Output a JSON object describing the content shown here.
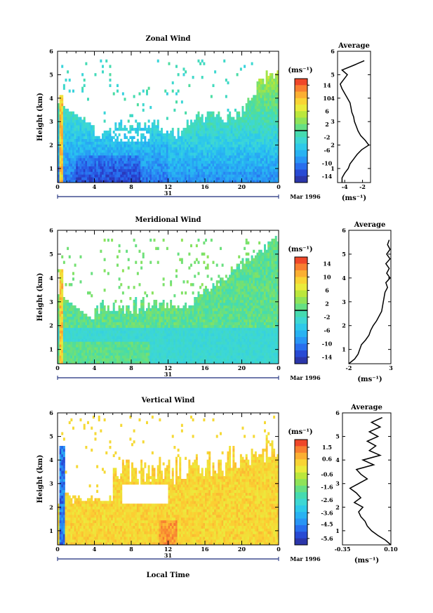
{
  "chart_data": [
    {
      "type": "heatmap",
      "key": "zonal",
      "title": "Zonal Wind",
      "ylabel": "Height (km)",
      "xticklabels": [
        "0",
        "4",
        "8",
        "12",
        "16",
        "20",
        "0"
      ],
      "xlim": [
        0,
        24
      ],
      "ylim": [
        0.4,
        6
      ],
      "yticks": [
        1,
        2,
        3,
        4,
        5,
        6
      ],
      "date_day": "31",
      "date_label": "Mar 1996",
      "colorbar": {
        "unit_label": "(ms⁻¹)",
        "range": [
          -16,
          16
        ],
        "tick_labels": [
          "14",
          "10",
          "6",
          "2",
          "-2",
          "-6",
          "-10",
          "-14"
        ],
        "tick_values": [
          14,
          10,
          6,
          2,
          -2,
          -6,
          -10,
          -14
        ],
        "zero_line": 0
      },
      "average_profile": {
        "title": "Average",
        "xlabel": "(ms⁻¹)",
        "xticklabels": [
          "-4",
          "-2"
        ],
        "xticks": [
          -4,
          -2
        ],
        "xlim": [
          -4.8,
          -1.1
        ],
        "heights": [
          0.4,
          0.6,
          0.8,
          1.0,
          1.2,
          1.4,
          1.6,
          1.8,
          2.0,
          2.2,
          2.4,
          2.6,
          2.8,
          3.0,
          3.2,
          3.4,
          3.6,
          3.8,
          4.0,
          4.2,
          4.4,
          4.6,
          4.8,
          5.0,
          5.2,
          5.4,
          5.6
        ],
        "values": [
          -4.3,
          -4.3,
          -4.0,
          -3.6,
          -3.4,
          -3.0,
          -2.6,
          -2.1,
          -1.3,
          -1.7,
          -2.2,
          -2.5,
          -2.7,
          -2.9,
          -3.0,
          -3.2,
          -3.3,
          -3.4,
          -3.7,
          -4.0,
          -4.3,
          -4.5,
          -4.1,
          -3.7,
          -4.3,
          -3.0,
          -1.8
        ]
      }
    },
    {
      "type": "heatmap",
      "key": "meridional",
      "title": "Meridional Wind",
      "ylabel": "Height (km)",
      "xticklabels": [
        "0",
        "4",
        "8",
        "12",
        "16",
        "20",
        "0"
      ],
      "xlim": [
        0,
        24
      ],
      "ylim": [
        0.4,
        6
      ],
      "yticks": [
        1,
        2,
        3,
        4,
        5,
        6
      ],
      "date_day": "31",
      "date_label": "Mar 1996",
      "colorbar": {
        "unit_label": "(ms⁻¹)",
        "range": [
          -16,
          16
        ],
        "tick_labels": [
          "14",
          "10",
          "6",
          "2",
          "-2",
          "-6",
          "-10",
          "-14"
        ],
        "tick_values": [
          14,
          10,
          6,
          2,
          -2,
          -6,
          -10,
          -14
        ],
        "zero_line": 0
      },
      "average_profile": {
        "title": "Average",
        "xlabel": "(ms⁻¹)",
        "xticklabels": [
          "-2",
          "3"
        ],
        "xticks": [
          -2,
          3
        ],
        "xlim": [
          -2,
          3
        ],
        "heights": [
          0.4,
          0.6,
          0.8,
          1.0,
          1.2,
          1.4,
          1.6,
          1.8,
          2.0,
          2.2,
          2.4,
          2.6,
          2.8,
          3.0,
          3.2,
          3.4,
          3.6,
          3.8,
          4.0,
          4.2,
          4.4,
          4.6,
          4.8,
          5.0,
          5.2,
          5.4,
          5.6
        ],
        "values": [
          -2.0,
          -1.3,
          -0.9,
          -0.7,
          -0.5,
          0.0,
          0.4,
          0.6,
          0.9,
          1.3,
          1.6,
          1.9,
          2.0,
          2.1,
          2.2,
          2.3,
          2.6,
          2.4,
          2.9,
          2.5,
          2.8,
          2.4,
          2.9,
          2.5,
          2.9,
          2.6,
          2.8
        ]
      }
    },
    {
      "type": "heatmap",
      "key": "vertical",
      "title": "Vertical Wind",
      "ylabel": "Height (km)",
      "xlabel": "Local Time",
      "xticklabels": [
        "0",
        "4",
        "8",
        "12",
        "16",
        "20",
        "0"
      ],
      "xlim": [
        0,
        24
      ],
      "ylim": [
        0.4,
        6
      ],
      "yticks": [
        1,
        2,
        3,
        4,
        5,
        6
      ],
      "date_day": "31",
      "date_label": "Mar 1996",
      "colorbar": {
        "unit_label": "(ms⁻¹)",
        "range": [
          -6.1,
          2.1
        ],
        "tick_labels": [
          "1.5",
          "0.6",
          "-0.6",
          "-1.6",
          "-2.6",
          "-3.6",
          "-4.5",
          "-5.6"
        ],
        "tick_values": [
          1.5,
          0.6,
          -0.6,
          -1.6,
          -2.6,
          -3.6,
          -4.5,
          -5.6
        ]
      },
      "average_profile": {
        "title": "Average",
        "xlabel": "(ms⁻¹)",
        "xticklabels": [
          "-0.35",
          "0.10"
        ],
        "xticks": [
          -0.35,
          0.1
        ],
        "xlim": [
          -0.35,
          0.1
        ],
        "heights": [
          0.4,
          0.6,
          0.8,
          1.0,
          1.2,
          1.4,
          1.6,
          1.8,
          2.0,
          2.2,
          2.4,
          2.6,
          2.8,
          3.0,
          3.2,
          3.4,
          3.6,
          3.8,
          4.0,
          4.2,
          4.4,
          4.6,
          4.8,
          5.0,
          5.2,
          5.4,
          5.6,
          5.8
        ],
        "values": [
          0.1,
          0.05,
          -0.02,
          -0.08,
          -0.12,
          -0.14,
          -0.18,
          -0.2,
          -0.16,
          -0.24,
          -0.18,
          -0.22,
          -0.28,
          -0.2,
          -0.12,
          -0.18,
          -0.22,
          -0.06,
          -0.16,
          0.0,
          -0.1,
          -0.04,
          -0.12,
          -0.02,
          -0.1,
          0.0,
          -0.08,
          0.02
        ]
      }
    }
  ]
}
